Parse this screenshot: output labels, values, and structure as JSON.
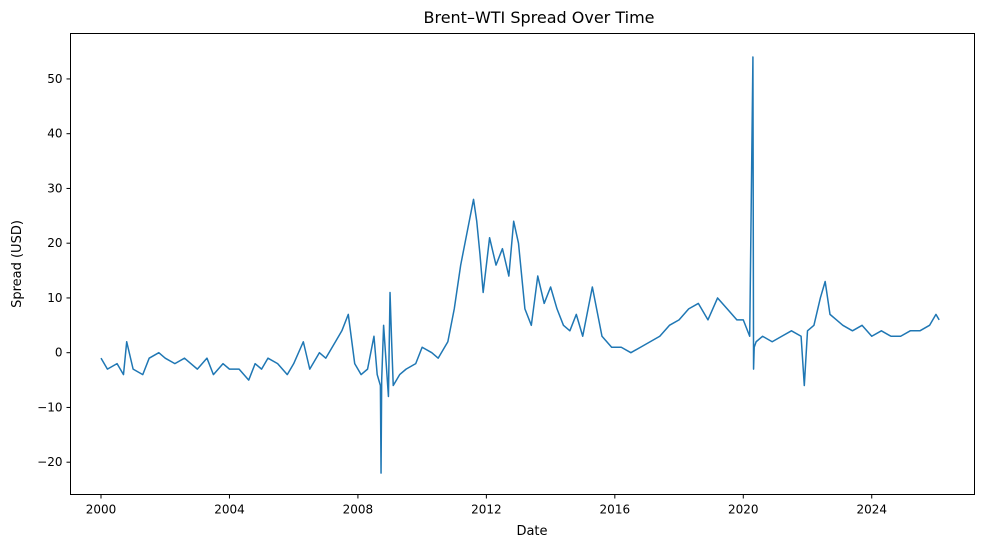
{
  "chart_data": {
    "type": "line",
    "title": "Brent–WTI Spread Over Time",
    "xlabel": "Date",
    "ylabel": "Spread (USD)",
    "xlim": [
      1999.05,
      2027.2
    ],
    "ylim": [
      -25.9,
      58.3
    ],
    "x_ticks": [
      2000,
      2004,
      2008,
      2012,
      2016,
      2020,
      2024
    ],
    "x_tick_labels": [
      "2000",
      "2004",
      "2008",
      "2012",
      "2016",
      "2020",
      "2024"
    ],
    "y_ticks": [
      -20,
      -10,
      0,
      10,
      20,
      30,
      40,
      50
    ],
    "y_tick_labels": [
      "−20",
      "−10",
      "0",
      "10",
      "20",
      "30",
      "40",
      "50"
    ],
    "grid": false,
    "legend": "none",
    "color": "#1f77b4",
    "series": [
      {
        "x": [
          2000.0,
          2000.2,
          2000.5,
          2000.7,
          2000.8,
          2001.0,
          2001.3,
          2001.5,
          2001.8,
          2002.0,
          2002.3,
          2002.6,
          2002.8,
          2003.0,
          2003.3,
          2003.5,
          2003.8,
          2004.0,
          2004.3,
          2004.6,
          2004.8,
          2005.0,
          2005.2,
          2005.5,
          2005.8,
          2006.0,
          2006.3,
          2006.5,
          2006.8,
          2007.0,
          2007.3,
          2007.5,
          2007.7,
          2007.9,
          2008.1,
          2008.3,
          2008.5,
          2008.6,
          2008.7,
          2008.72,
          2008.74,
          2008.8,
          2008.95,
          2009.0,
          2009.05,
          2009.1,
          2009.3,
          2009.5,
          2009.8,
          2010.0,
          2010.3,
          2010.5,
          2010.8,
          2011.0,
          2011.2,
          2011.4,
          2011.6,
          2011.7,
          2011.8,
          2011.9,
          2012.1,
          2012.3,
          2012.5,
          2012.7,
          2012.85,
          2013.0,
          2013.2,
          2013.4,
          2013.6,
          2013.8,
          2014.0,
          2014.2,
          2014.4,
          2014.6,
          2014.8,
          2015.0,
          2015.3,
          2015.6,
          2015.9,
          2016.2,
          2016.5,
          2016.8,
          2017.1,
          2017.4,
          2017.7,
          2018.0,
          2018.3,
          2018.6,
          2018.9,
          2019.2,
          2019.5,
          2019.8,
          2020.0,
          2020.2,
          2020.3,
          2020.32,
          2020.34,
          2020.4,
          2020.6,
          2020.9,
          2021.2,
          2021.5,
          2021.8,
          2021.9,
          2022.0,
          2022.2,
          2022.4,
          2022.55,
          2022.7,
          2022.9,
          2023.1,
          2023.4,
          2023.7,
          2024.0,
          2024.3,
          2024.6,
          2024.9,
          2025.2,
          2025.5,
          2025.8,
          2026.0,
          2026.1
        ],
        "y": [
          -1,
          -3,
          -2,
          -4,
          2,
          -3,
          -4,
          -1,
          0,
          -1,
          -2,
          -1,
          -2,
          -3,
          -1,
          -4,
          -2,
          -3,
          -3,
          -5,
          -2,
          -3,
          -1,
          -2,
          -4,
          -2,
          2,
          -3,
          0,
          -1,
          2,
          4,
          7,
          -2,
          -4,
          -3,
          3,
          -4,
          -6,
          -22,
          -5,
          5,
          -8,
          11,
          2,
          -6,
          -4,
          -3,
          -2,
          1,
          0,
          -1,
          2,
          8,
          16,
          22,
          28,
          24,
          18,
          11,
          21,
          16,
          19,
          14,
          24,
          20,
          8,
          5,
          14,
          9,
          12,
          8,
          5,
          4,
          7,
          3,
          12,
          3,
          1,
          1,
          0,
          1,
          2,
          3,
          5,
          6,
          8,
          9,
          6,
          10,
          8,
          6,
          6,
          3,
          54,
          -3,
          1,
          2,
          3,
          2,
          3,
          4,
          3,
          -6,
          4,
          5,
          10,
          13,
          7,
          6,
          5,
          4,
          5,
          3,
          4,
          3,
          3,
          4,
          4,
          5,
          7,
          6
        ]
      }
    ]
  }
}
